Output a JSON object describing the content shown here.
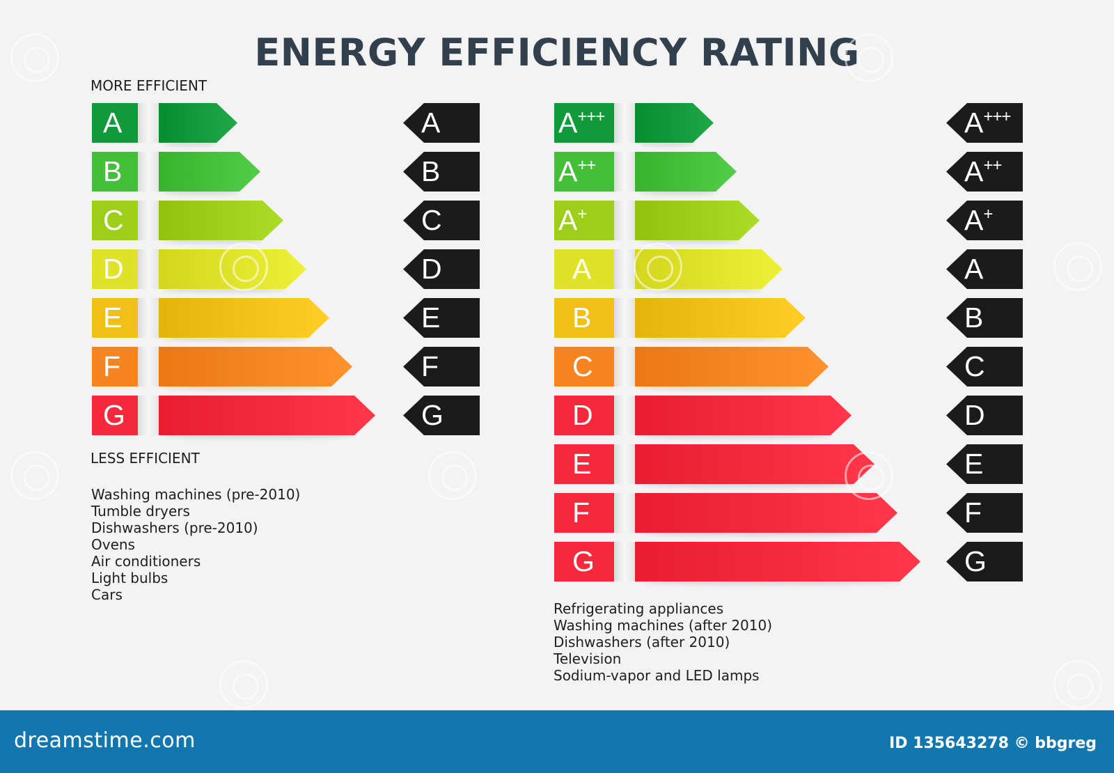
{
  "title": "ENERGY EFFICIENCY RATING",
  "more_efficient": "MORE EFFICIENT",
  "less_efficient": "LESS EFFICIENT",
  "scales": [
    {
      "classes": [
        {
          "letter": "A",
          "plus": "",
          "color": "#129a3a"
        },
        {
          "letter": "B",
          "plus": "",
          "color": "#45bf3a"
        },
        {
          "letter": "C",
          "plus": "",
          "color": "#9cce1a"
        },
        {
          "letter": "D",
          "plus": "",
          "color": "#e0e22a"
        },
        {
          "letter": "E",
          "plus": "",
          "color": "#f0c018"
        },
        {
          "letter": "F",
          "plus": "",
          "color": "#f6841f"
        },
        {
          "letter": "G",
          "plus": "",
          "color": "#f5293b"
        }
      ],
      "appliances": [
        "Washing machines (pre-2010)",
        "Tumble dryers",
        "Dishwashers (pre-2010)",
        "Ovens",
        "Air conditioners",
        "Light bulbs",
        "Cars"
      ]
    },
    {
      "classes": [
        {
          "letter": "A",
          "plus": "+++",
          "color": "#129a3a"
        },
        {
          "letter": "A",
          "plus": "++",
          "color": "#45bf3a"
        },
        {
          "letter": "A",
          "plus": "+",
          "color": "#9cce1a"
        },
        {
          "letter": "A",
          "plus": "",
          "color": "#e0e22a"
        },
        {
          "letter": "B",
          "plus": "",
          "color": "#f0c018"
        },
        {
          "letter": "C",
          "plus": "",
          "color": "#f6841f"
        },
        {
          "letter": "D",
          "plus": "",
          "color": "#f5293b"
        },
        {
          "letter": "E",
          "plus": "",
          "color": "#f5293b"
        },
        {
          "letter": "F",
          "plus": "",
          "color": "#f5293b"
        },
        {
          "letter": "G",
          "plus": "",
          "color": "#f5293b"
        }
      ],
      "appliances": [
        "Refrigerating appliances",
        "Washing machines (after 2010)",
        "Dishwashers (after 2010)",
        "Television",
        "Sodium-vapor and LED lamps"
      ]
    }
  ],
  "footer": {
    "brand": "dreamstime.com",
    "id_text": "ID 135643278 © bbgreg",
    "color": "#1277ae"
  }
}
